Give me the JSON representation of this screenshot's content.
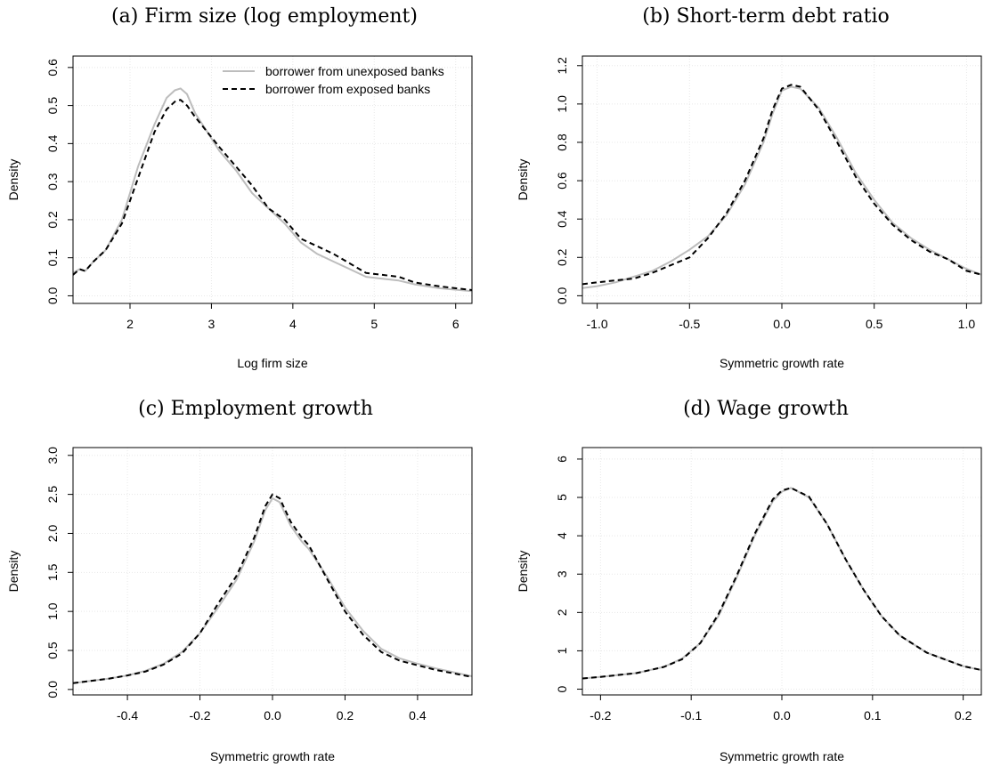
{
  "legend": {
    "entries": [
      {
        "label": "borrower from unexposed banks",
        "color": "#bdbdbd",
        "dash": "solid"
      },
      {
        "label": "borrower from exposed banks",
        "color": "#000000",
        "dash": "dashed"
      }
    ],
    "placement": "top-right",
    "panel": 0
  },
  "chart_data": [
    {
      "type": "line",
      "title": "(a) Firm size (log employment)",
      "xlabel": "Log firm size",
      "ylabel": "Density",
      "xlim": [
        1.3,
        6.2
      ],
      "ylim": [
        -0.02,
        0.63
      ],
      "xticks": [
        2,
        3,
        4,
        5,
        6
      ],
      "xtick_labels": [
        "2",
        "3",
        "4",
        "5",
        "6"
      ],
      "yticks": [
        0,
        0.1,
        0.2,
        0.3,
        0.4,
        0.5,
        0.6
      ],
      "ytick_labels": [
        "0.0",
        "0.1",
        "0.2",
        "0.3",
        "0.4",
        "0.5",
        "0.6"
      ],
      "grid": true,
      "series": [
        {
          "name": "borrower from unexposed banks",
          "color": "#bdbdbd",
          "x": [
            1.3,
            1.38,
            1.45,
            1.55,
            1.7,
            1.9,
            2.1,
            2.3,
            2.45,
            2.55,
            2.62,
            2.7,
            2.8,
            2.95,
            3.1,
            3.3,
            3.5,
            3.7,
            3.9,
            4.1,
            4.3,
            4.5,
            4.7,
            4.9,
            5.1,
            5.3,
            5.5,
            5.8,
            6.2
          ],
          "y": [
            0.06,
            0.07,
            0.065,
            0.09,
            0.12,
            0.2,
            0.34,
            0.45,
            0.52,
            0.54,
            0.545,
            0.53,
            0.48,
            0.43,
            0.38,
            0.33,
            0.27,
            0.23,
            0.19,
            0.14,
            0.11,
            0.09,
            0.07,
            0.05,
            0.045,
            0.04,
            0.03,
            0.02,
            0.012
          ]
        },
        {
          "name": "borrower from exposed banks",
          "color": "#000000",
          "x": [
            1.3,
            1.38,
            1.45,
            1.55,
            1.7,
            1.9,
            2.1,
            2.3,
            2.45,
            2.55,
            2.62,
            2.7,
            2.8,
            2.95,
            3.1,
            3.3,
            3.5,
            3.7,
            3.9,
            4.1,
            4.3,
            4.5,
            4.7,
            4.9,
            5.1,
            5.3,
            5.5,
            5.8,
            6.2
          ],
          "y": [
            0.055,
            0.07,
            0.065,
            0.09,
            0.12,
            0.19,
            0.31,
            0.43,
            0.49,
            0.51,
            0.515,
            0.5,
            0.47,
            0.43,
            0.39,
            0.34,
            0.29,
            0.23,
            0.2,
            0.15,
            0.13,
            0.11,
            0.085,
            0.06,
            0.055,
            0.05,
            0.035,
            0.025,
            0.015
          ]
        }
      ]
    },
    {
      "type": "line",
      "title": "(b) Short-term debt ratio",
      "xlabel": "Symmetric growth rate",
      "ylabel": "Density",
      "xlim": [
        -1.08,
        1.08
      ],
      "ylim": [
        -0.04,
        1.25
      ],
      "xticks": [
        -1,
        -0.5,
        0,
        0.5,
        1
      ],
      "xtick_labels": [
        "-1.0",
        "-0.5",
        "0.0",
        "0.5",
        "1.0"
      ],
      "yticks": [
        0,
        0.2,
        0.4,
        0.6,
        0.8,
        1.0,
        1.2
      ],
      "ytick_labels": [
        "0.0",
        "0.2",
        "0.4",
        "0.6",
        "0.8",
        "1.0",
        "1.2"
      ],
      "grid": true,
      "series": [
        {
          "name": "borrower from unexposed banks",
          "color": "#bdbdbd",
          "x": [
            -1.08,
            -1.0,
            -0.9,
            -0.8,
            -0.7,
            -0.6,
            -0.5,
            -0.4,
            -0.3,
            -0.2,
            -0.1,
            -0.05,
            0.0,
            0.05,
            0.1,
            0.2,
            0.3,
            0.4,
            0.5,
            0.6,
            0.7,
            0.8,
            0.9,
            1.0,
            1.08
          ],
          "y": [
            0.04,
            0.05,
            0.07,
            0.1,
            0.13,
            0.18,
            0.24,
            0.31,
            0.42,
            0.58,
            0.8,
            0.95,
            1.07,
            1.09,
            1.08,
            0.98,
            0.82,
            0.64,
            0.5,
            0.38,
            0.3,
            0.24,
            0.19,
            0.14,
            0.11
          ]
        },
        {
          "name": "borrower from exposed banks",
          "color": "#000000",
          "x": [
            -1.08,
            -1.0,
            -0.9,
            -0.8,
            -0.7,
            -0.6,
            -0.5,
            -0.4,
            -0.3,
            -0.2,
            -0.1,
            -0.05,
            0.0,
            0.05,
            0.1,
            0.2,
            0.3,
            0.4,
            0.5,
            0.6,
            0.7,
            0.8,
            0.9,
            1.0,
            1.08
          ],
          "y": [
            0.06,
            0.07,
            0.08,
            0.09,
            0.12,
            0.16,
            0.2,
            0.3,
            0.43,
            0.6,
            0.82,
            0.97,
            1.08,
            1.1,
            1.09,
            0.97,
            0.8,
            0.62,
            0.48,
            0.37,
            0.29,
            0.23,
            0.19,
            0.13,
            0.11
          ]
        }
      ]
    },
    {
      "type": "line",
      "title": "(c) Employment growth",
      "xlabel": "Symmetric growth rate",
      "ylabel": "Density",
      "xlim": [
        -0.55,
        0.55
      ],
      "ylim": [
        -0.07,
        3.1
      ],
      "xticks": [
        -0.4,
        -0.2,
        0,
        0.2,
        0.4
      ],
      "xtick_labels": [
        "-0.4",
        "-0.2",
        "0.0",
        "0.2",
        "0.4"
      ],
      "yticks": [
        0,
        0.5,
        1.0,
        1.5,
        2.0,
        2.5,
        3.0
      ],
      "ytick_labels": [
        "0.0",
        "0.5",
        "1.0",
        "1.5",
        "2.0",
        "2.5",
        "3.0"
      ],
      "grid": true,
      "series": [
        {
          "name": "borrower from unexposed banks",
          "color": "#bdbdbd",
          "x": [
            -0.55,
            -0.45,
            -0.4,
            -0.35,
            -0.3,
            -0.25,
            -0.2,
            -0.15,
            -0.1,
            -0.05,
            -0.02,
            0.0,
            0.02,
            0.05,
            0.08,
            0.1,
            0.15,
            0.2,
            0.25,
            0.3,
            0.35,
            0.4,
            0.45,
            0.55
          ],
          "y": [
            0.08,
            0.14,
            0.18,
            0.24,
            0.33,
            0.48,
            0.72,
            1.05,
            1.4,
            1.9,
            2.3,
            2.45,
            2.4,
            2.1,
            1.9,
            1.8,
            1.45,
            1.05,
            0.75,
            0.52,
            0.4,
            0.33,
            0.27,
            0.17
          ]
        },
        {
          "name": "borrower from exposed banks",
          "color": "#000000",
          "x": [
            -0.55,
            -0.45,
            -0.4,
            -0.35,
            -0.3,
            -0.25,
            -0.2,
            -0.15,
            -0.1,
            -0.05,
            -0.02,
            0.0,
            0.02,
            0.05,
            0.08,
            0.1,
            0.15,
            0.2,
            0.25,
            0.3,
            0.35,
            0.4,
            0.45,
            0.55
          ],
          "y": [
            0.08,
            0.14,
            0.18,
            0.23,
            0.32,
            0.46,
            0.72,
            1.1,
            1.45,
            1.95,
            2.35,
            2.5,
            2.45,
            2.15,
            1.95,
            1.85,
            1.42,
            1.0,
            0.7,
            0.48,
            0.37,
            0.31,
            0.25,
            0.16
          ]
        }
      ]
    },
    {
      "type": "line",
      "title": "(d) Wage growth",
      "xlabel": "Symmetric growth rate",
      "ylabel": "Density",
      "xlim": [
        -0.22,
        0.22
      ],
      "ylim": [
        -0.15,
        6.3
      ],
      "xticks": [
        -0.2,
        -0.1,
        0,
        0.1,
        0.2
      ],
      "xtick_labels": [
        "-0.2",
        "-0.1",
        "0.0",
        "0.1",
        "0.2"
      ],
      "yticks": [
        0,
        1,
        2,
        3,
        4,
        5,
        6
      ],
      "ytick_labels": [
        "0",
        "1",
        "2",
        "3",
        "4",
        "5",
        "6"
      ],
      "grid": true,
      "series": [
        {
          "name": "borrower from unexposed banks",
          "color": "#bdbdbd",
          "x": [
            -0.22,
            -0.2,
            -0.16,
            -0.13,
            -0.11,
            -0.09,
            -0.07,
            -0.05,
            -0.03,
            -0.01,
            0.0,
            0.01,
            0.03,
            0.05,
            0.07,
            0.09,
            0.11,
            0.13,
            0.16,
            0.2,
            0.22
          ],
          "y": [
            0.28,
            0.32,
            0.42,
            0.58,
            0.8,
            1.2,
            1.9,
            2.9,
            4.0,
            4.9,
            5.15,
            5.25,
            5.0,
            4.3,
            3.4,
            2.6,
            1.9,
            1.4,
            0.95,
            0.6,
            0.5
          ]
        },
        {
          "name": "borrower from exposed banks",
          "color": "#000000",
          "x": [
            -0.22,
            -0.2,
            -0.16,
            -0.13,
            -0.11,
            -0.09,
            -0.07,
            -0.05,
            -0.03,
            -0.01,
            0.0,
            0.01,
            0.03,
            0.05,
            0.07,
            0.09,
            0.11,
            0.13,
            0.16,
            0.2,
            0.22
          ],
          "y": [
            0.28,
            0.32,
            0.42,
            0.58,
            0.78,
            1.2,
            1.95,
            2.95,
            4.05,
            4.95,
            5.18,
            5.25,
            5.02,
            4.3,
            3.4,
            2.6,
            1.9,
            1.4,
            0.95,
            0.6,
            0.5
          ]
        }
      ]
    }
  ]
}
